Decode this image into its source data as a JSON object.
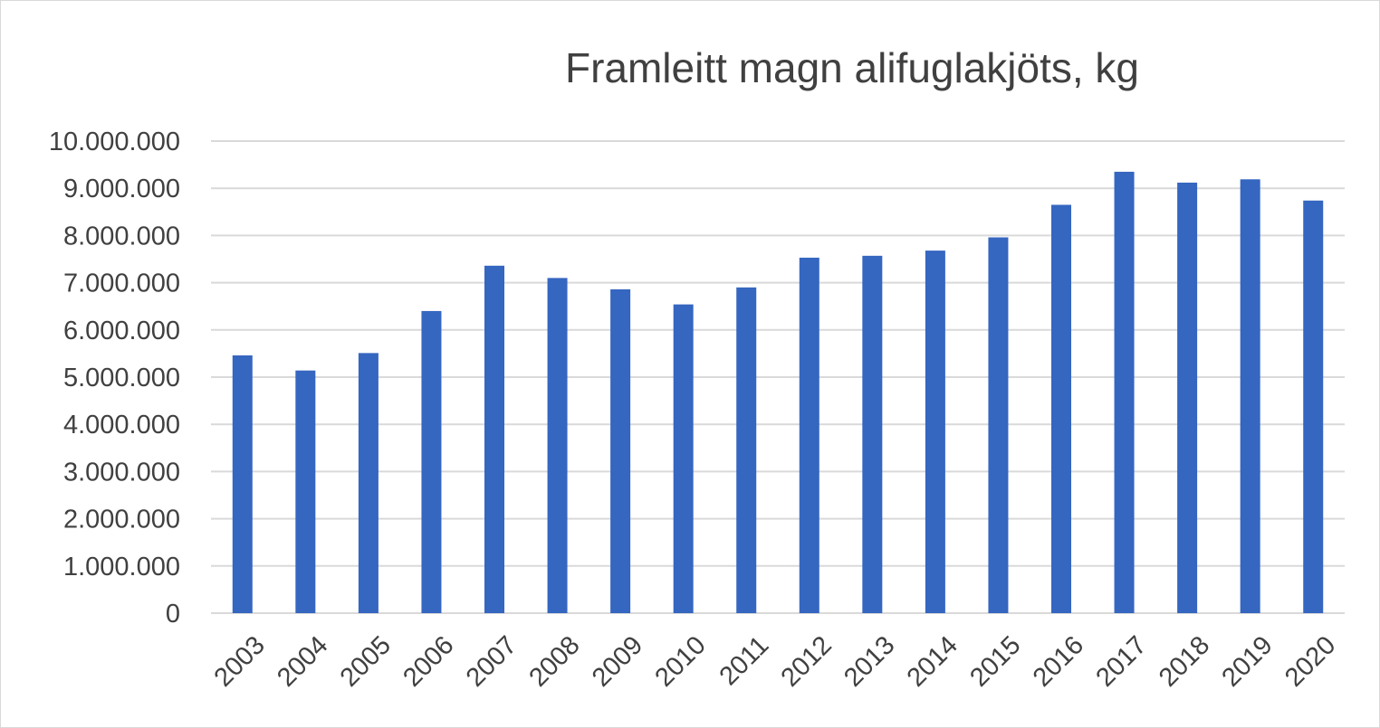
{
  "chart_data": {
    "type": "bar",
    "title": "Framleitt magn alifuglakjöts, kg",
    "categories": [
      "2003",
      "2004",
      "2005",
      "2006",
      "2007",
      "2008",
      "2009",
      "2010",
      "2011",
      "2012",
      "2013",
      "2014",
      "2015",
      "2016",
      "2017",
      "2018",
      "2019",
      "2020"
    ],
    "series": [
      {
        "values": [
          5460000,
          5140000,
          5510000,
          6400000,
          7360000,
          7100000,
          6860000,
          6540000,
          6900000,
          7530000,
          7570000,
          7680000,
          7960000,
          8650000,
          9350000,
          9120000,
          9190000,
          8740000
        ],
        "color": "#3566c0"
      }
    ],
    "yticks": [
      "0",
      "1.000.000",
      "2.000.000",
      "3.000.000",
      "4.000.000",
      "5.000.000",
      "6.000.000",
      "7.000.000",
      "8.000.000",
      "9.000.000",
      "10.000.000"
    ],
    "ylim": [
      0,
      10000000
    ],
    "grid": true,
    "legend": "none",
    "gridline_color": "#d9d9d9",
    "text_color": "#404040"
  }
}
